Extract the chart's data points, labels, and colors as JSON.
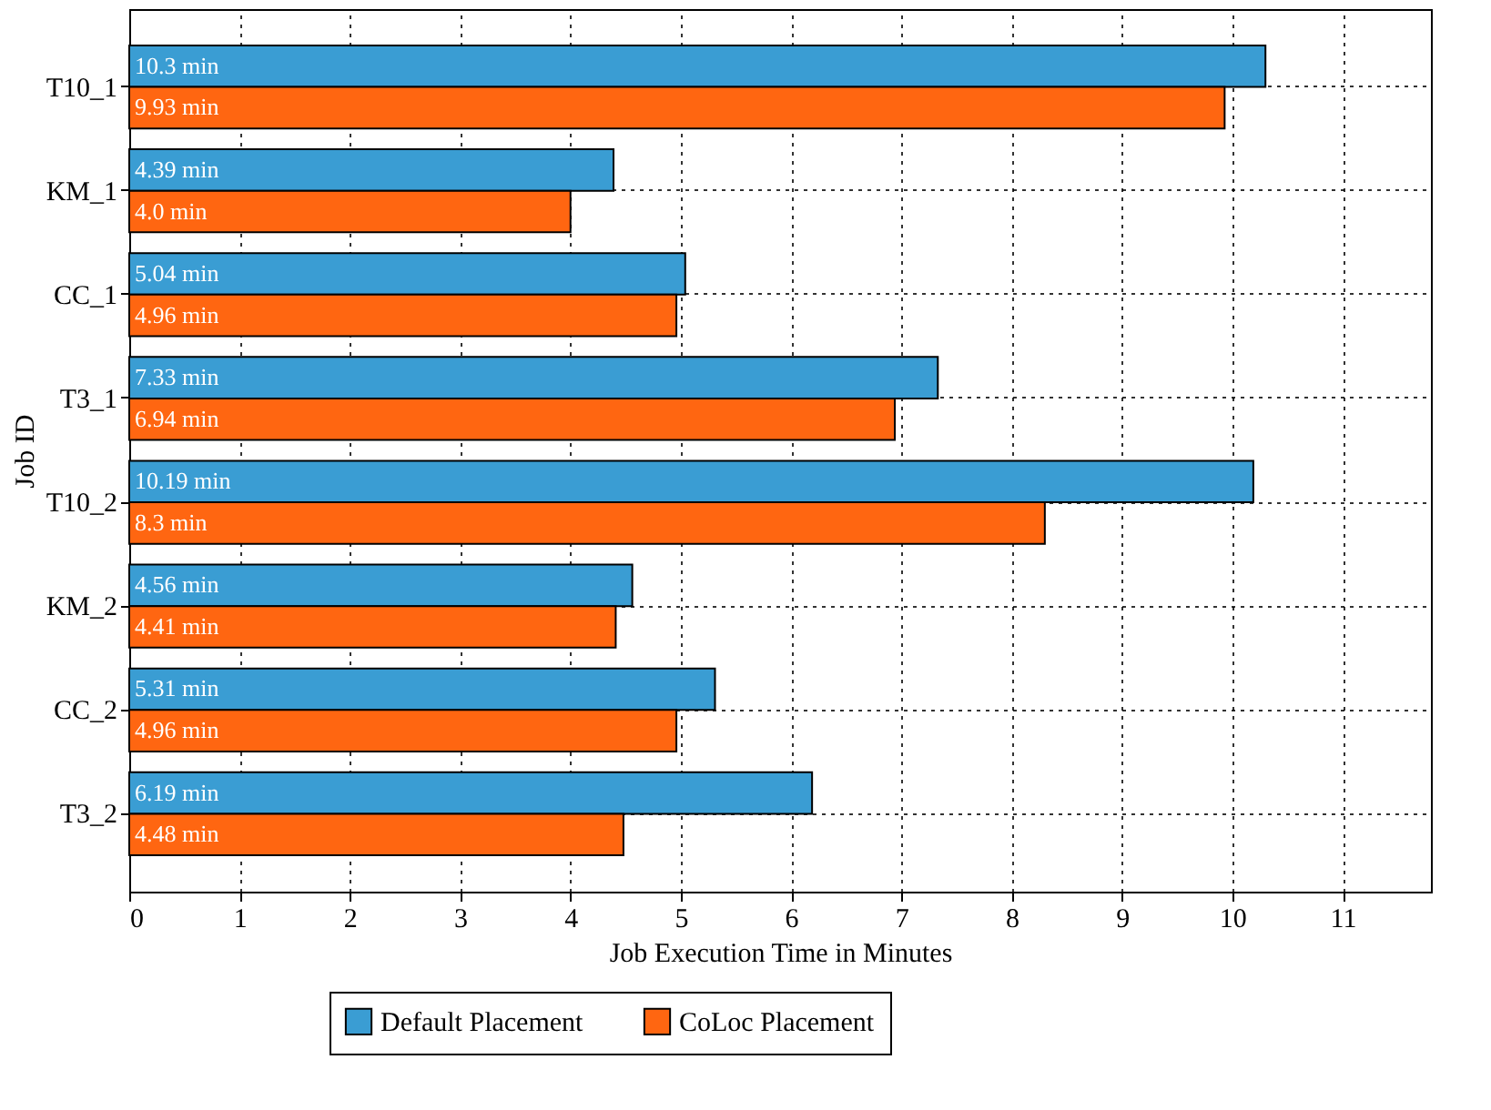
{
  "chart_data": {
    "type": "bar",
    "orientation": "horizontal",
    "xlabel": "Job Execution Time in Minutes",
    "ylabel": "Job ID",
    "categories": [
      "T10_1",
      "KM_1",
      "CC_1",
      "T3_1",
      "T10_2",
      "KM_2",
      "CC_2",
      "T3_2"
    ],
    "series": [
      {
        "name": "Default Placement",
        "color": "#3a9dd3",
        "values": [
          10.3,
          4.39,
          5.04,
          7.33,
          10.19,
          4.56,
          5.31,
          6.19
        ],
        "value_labels": [
          "10.3 min",
          "4.39 min",
          "5.04 min",
          "7.33 min",
          "10.19 min",
          "4.56 min",
          "5.31 min",
          "6.19 min"
        ]
      },
      {
        "name": "CoLoc Placement",
        "color": "#ff6611",
        "values": [
          9.93,
          4.0,
          4.96,
          6.94,
          8.3,
          4.41,
          4.96,
          4.48
        ],
        "value_labels": [
          "9.93 min",
          "4.0 min",
          "4.96 min",
          "6.94 min",
          "8.3 min",
          "4.41 min",
          "4.96 min",
          "4.48 min"
        ]
      }
    ],
    "xlim": [
      0,
      11.8
    ],
    "xticks": [
      0,
      1,
      2,
      3,
      4,
      5,
      6,
      7,
      8,
      9,
      10,
      11
    ],
    "grid": true,
    "legend": "bottom"
  }
}
